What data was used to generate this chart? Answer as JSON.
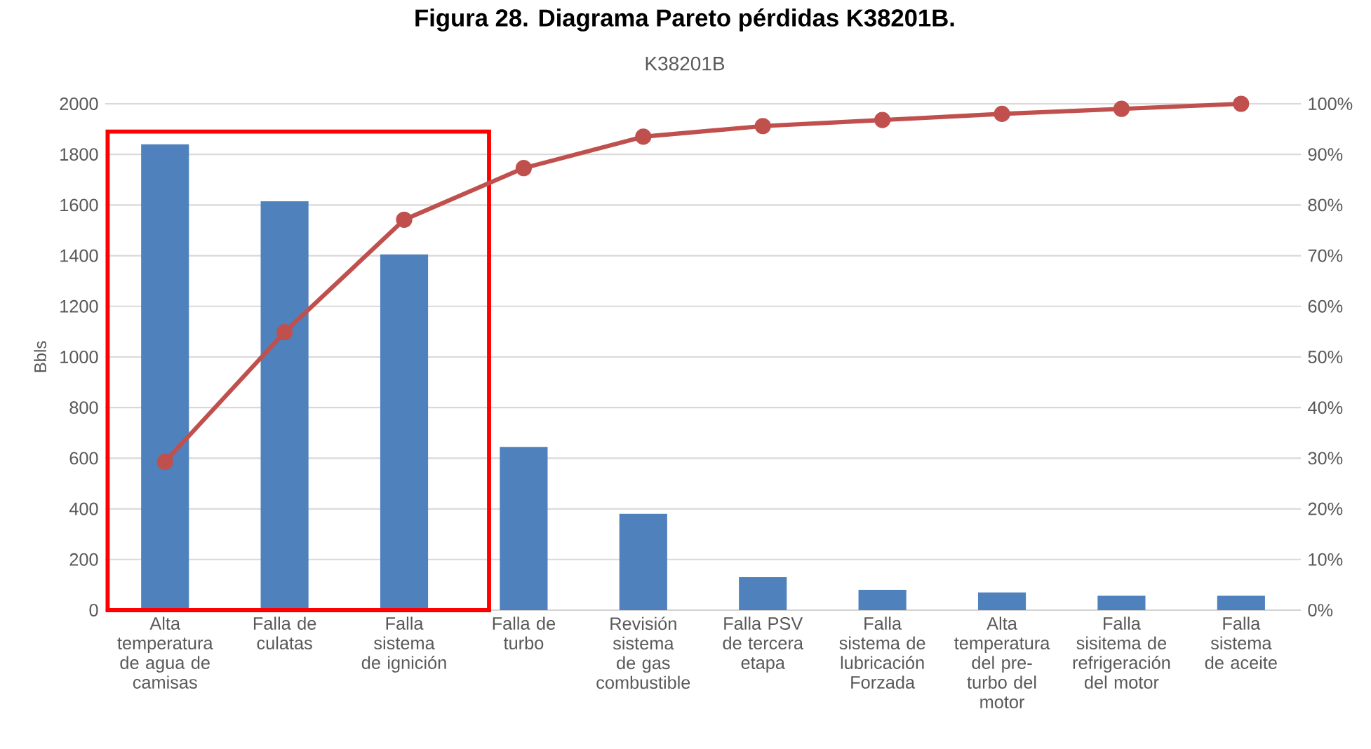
{
  "chart_data": {
    "type": "bar",
    "title": "Figura 28. Diagrama Pareto pérdidas K38201B.",
    "subtitle": "K38201B",
    "ylabel": "Bbls",
    "categories": [
      "Alta temperatura de agua de camisas",
      "Falla de culatas",
      "Falla sistema de ignición",
      "Falla de turbo",
      "Revisión sistema de gas combustible",
      "Falla PSV de tercera etapa",
      "Falla sistema de lubricación Forzada",
      "Alta temperatura del pre-turbo del motor",
      "Falla sisitema de refrigeración del motor",
      "Falla sistema de aceite"
    ],
    "series": [
      {
        "color": "#4f81bd",
        "values": [
          1840,
          1615,
          1405,
          645,
          380,
          130,
          80,
          70,
          57,
          57
        ]
      },
      {
        "type": "line",
        "axis": "y2",
        "color": "#c0504d",
        "values": [
          29.3,
          54.9,
          77.1,
          87.3,
          93.5,
          95.6,
          96.8,
          98.0,
          99.0,
          100
        ]
      }
    ],
    "ylim": [
      0,
      2000
    ],
    "yticks": [
      0,
      200,
      400,
      600,
      800,
      1000,
      1200,
      1400,
      1600,
      1800,
      2000
    ],
    "y2lim": [
      0,
      100
    ],
    "y2ticks": [
      {
        "value": 0,
        "label": "0%"
      },
      {
        "value": 10,
        "label": "10%"
      },
      {
        "value": 20,
        "label": "20%"
      },
      {
        "value": 30,
        "label": "30%"
      },
      {
        "value": 40,
        "label": "40%"
      },
      {
        "value": 50,
        "label": "50%"
      },
      {
        "value": 60,
        "label": "60%"
      },
      {
        "value": 70,
        "label": "70%"
      },
      {
        "value": 80,
        "label": "80%"
      },
      {
        "value": 90,
        "label": "90%"
      },
      {
        "value": 100,
        "label": "100%"
      }
    ],
    "grid": "y",
    "marker": "circle",
    "line_style": "solid"
  }
}
